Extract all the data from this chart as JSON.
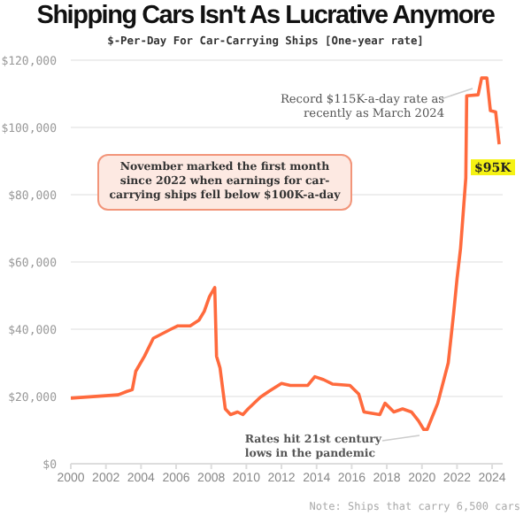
{
  "chart_data": {
    "type": "line",
    "title": "Shipping Cars Isn't As Lucrative Anymore",
    "subtitle": "$-Per-Day For Car-Carrying Ships [One-year rate]",
    "x": [
      2000,
      2002.7,
      2003.2,
      2003.5,
      2003.7,
      2004.2,
      2004.7,
      2005.7,
      2006.1,
      2006.8,
      2007.3,
      2007.6,
      2007.9,
      2008.2,
      2008.3,
      2008.5,
      2008.8,
      2009.1,
      2009.5,
      2009.8,
      2010.1,
      2010.8,
      2011.3,
      2012,
      2012.5,
      2013.5,
      2013.9,
      2014.4,
      2014.9,
      2015.9,
      2016.4,
      2016.7,
      2017.6,
      2017.9,
      2018.4,
      2018.9,
      2019.4,
      2019.8,
      2020.1,
      2020.3,
      2020.9,
      2021.5,
      2021.8,
      2022,
      2022.2,
      2022.5,
      2022.55,
      2023.2,
      2023.4,
      2023.7,
      2023.9,
      2024.2,
      2024.4
    ],
    "series": [
      {
        "color": "#ff6a3d",
        "values": [
          19500,
          20500,
          21500,
          22000,
          27500,
          32000,
          37300,
          40000,
          41000,
          41000,
          42700,
          45300,
          49700,
          52400,
          32000,
          28500,
          16300,
          14600,
          15400,
          14600,
          16300,
          19800,
          21600,
          23900,
          23300,
          23300,
          25900,
          25000,
          23700,
          23300,
          20700,
          15400,
          14600,
          18000,
          15400,
          16300,
          15400,
          12800,
          10200,
          10200,
          18000,
          30000,
          44400,
          55000,
          64000,
          85000,
          109400,
          109700,
          114700,
          114700,
          105000,
          104600,
          95000
        ]
      }
    ],
    "xlim": [
      2000,
      2024.6
    ],
    "xticks": [
      2000,
      2002,
      2004,
      2006,
      2008,
      2010,
      2012,
      2014,
      2016,
      2018,
      2020,
      2022,
      2024
    ],
    "ylim": [
      0,
      120000
    ],
    "yticks": [
      {
        "value": 0,
        "label": "$0"
      },
      {
        "value": 20000,
        "label": "$20,000"
      },
      {
        "value": 40000,
        "label": "$40,000"
      },
      {
        "value": 60000,
        "label": "$60,000"
      },
      {
        "value": 80000,
        "label": "$80,000"
      },
      {
        "value": 100000,
        "label": "$100,000"
      },
      {
        "value": 120000,
        "label": "$120,000"
      }
    ],
    "grid": "y",
    "marker": "none",
    "line_style": "solid",
    "annotations": [
      {
        "text": "Record $115K-a-day rate as recently as March 2024",
        "x": 2023.5,
        "y": 114700
      },
      {
        "text": "$95K",
        "x": 2024.4,
        "y": 95000
      },
      "November marked the first month since 2022 when earnings for car-carrying ships fell below $100K-a-day",
      {
        "text": "Rates hit 21st century lows in the pandemic",
        "x": 2020.2,
        "y": 10200
      },
      "Note: Ships that carry 6,500 cars"
    ]
  }
}
